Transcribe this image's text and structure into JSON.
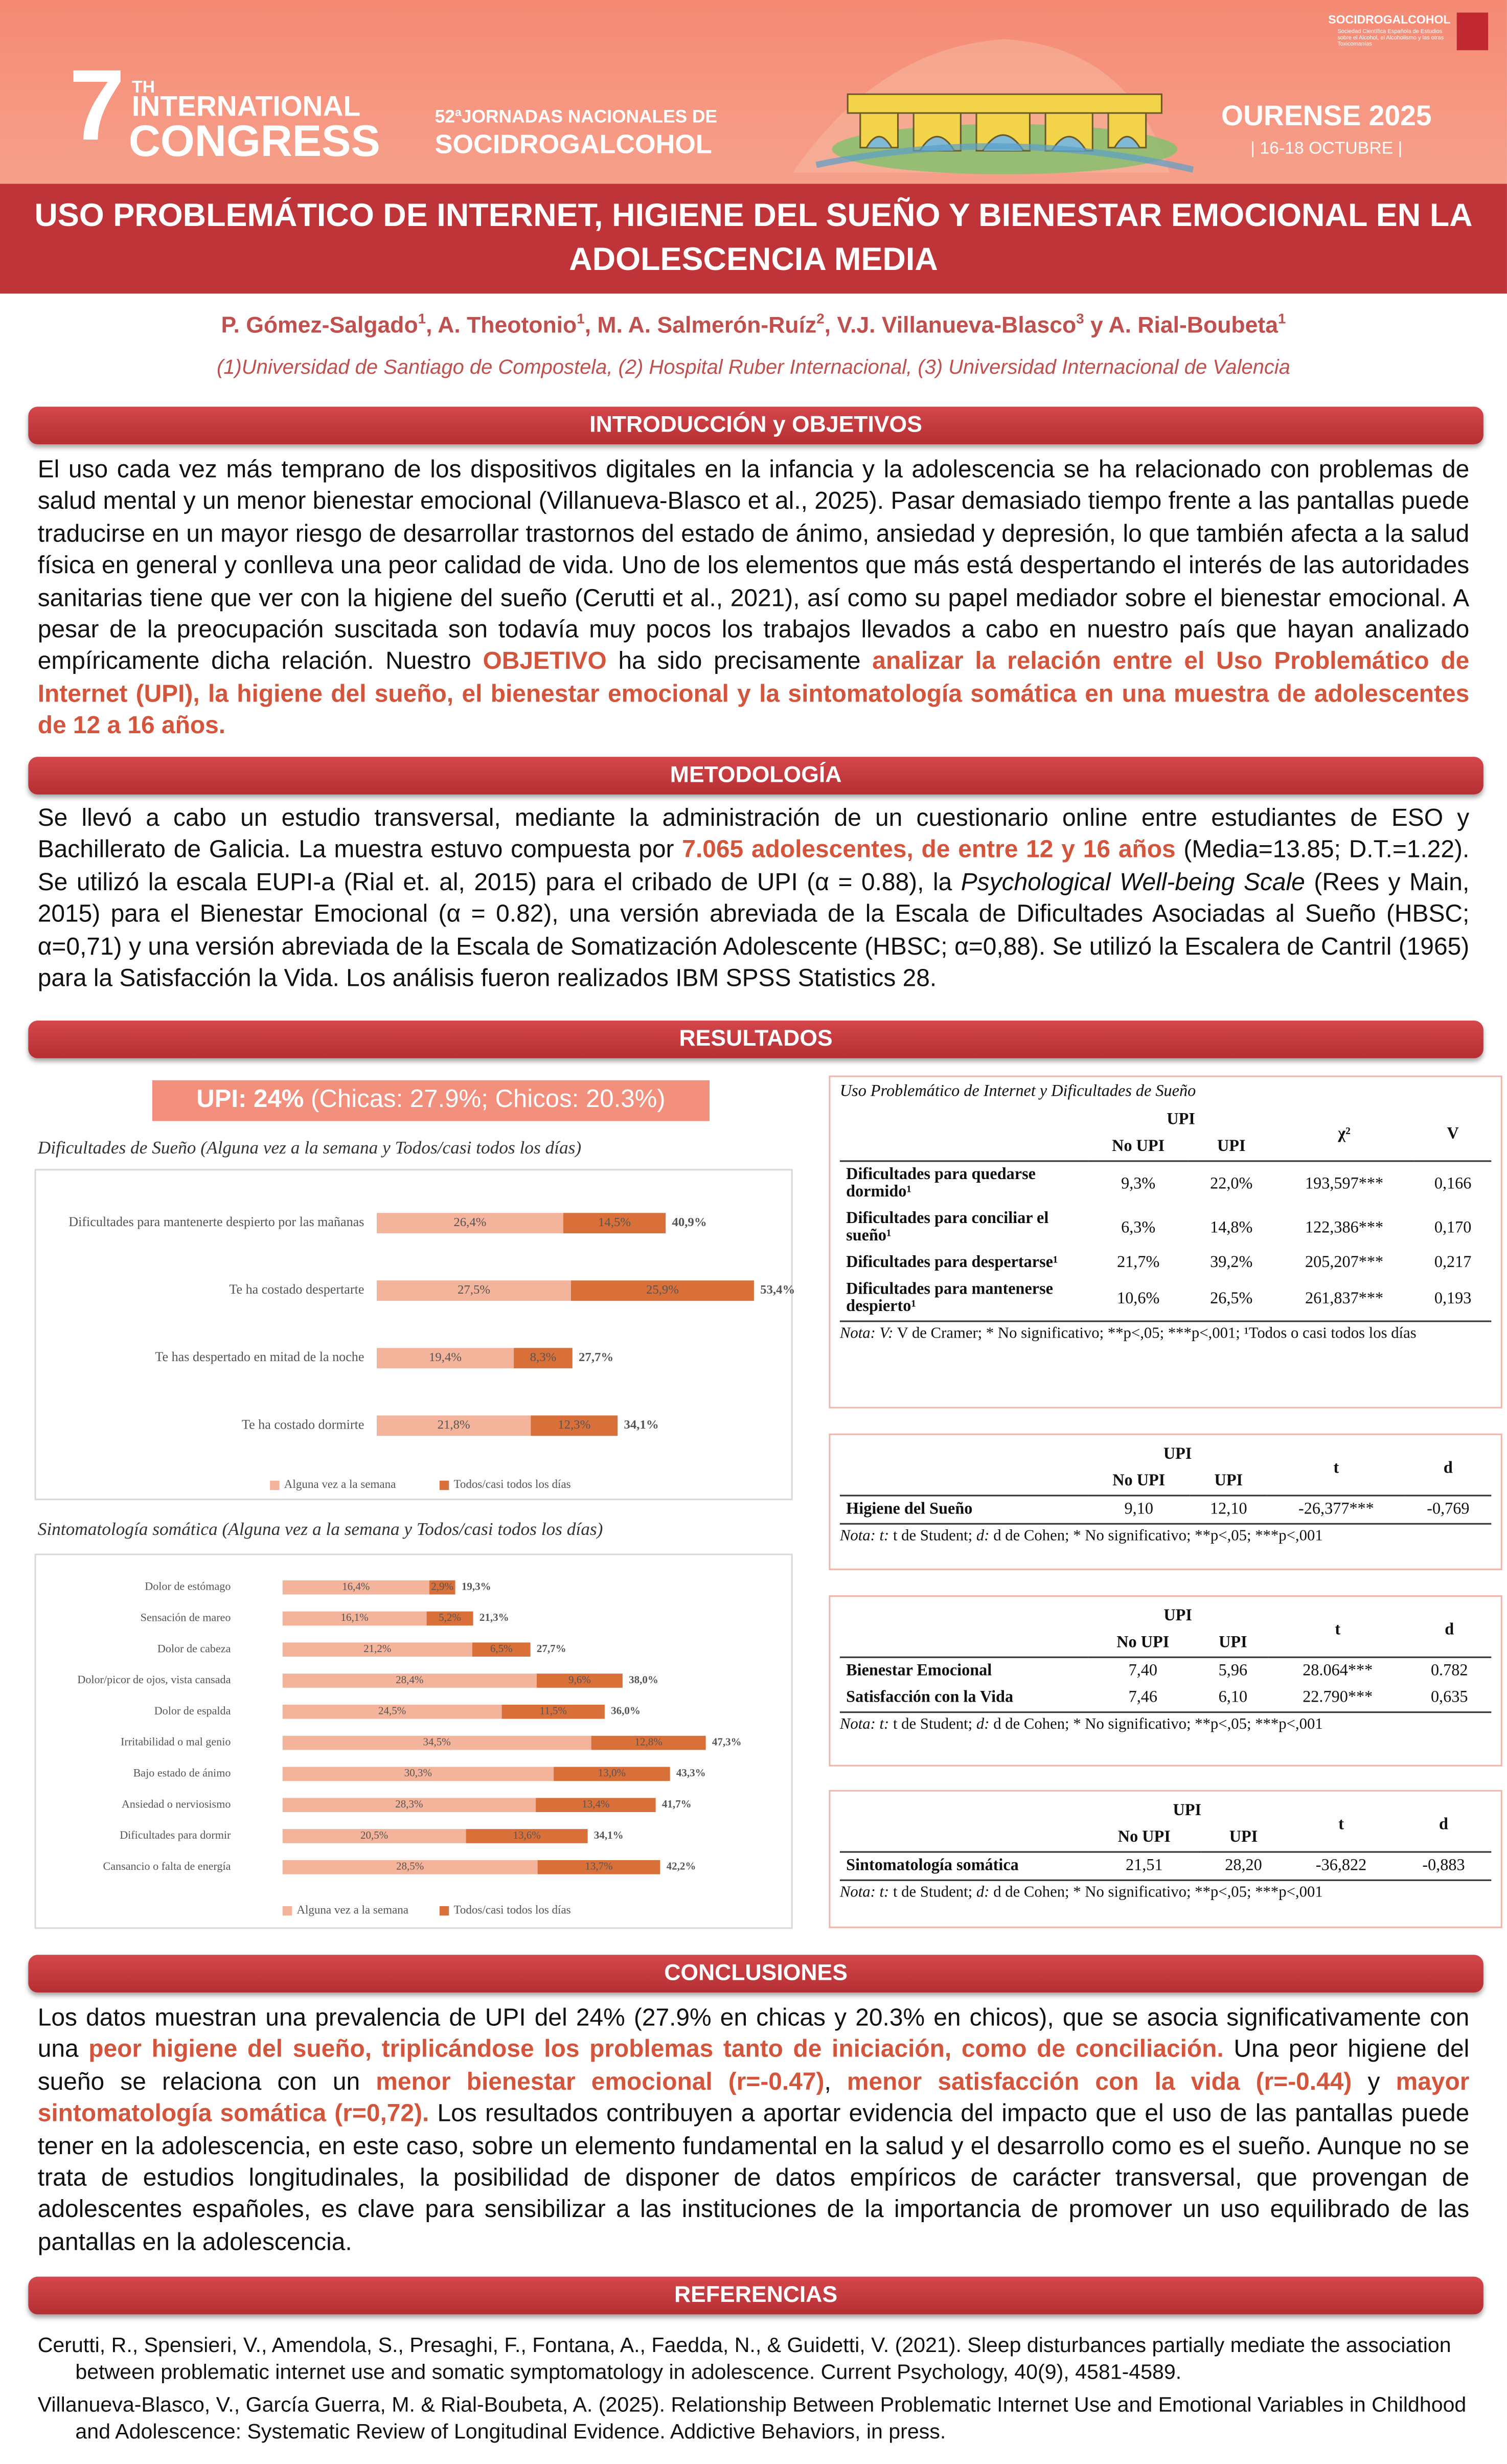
{
  "header": {
    "number": "7",
    "ordinal": "TH",
    "line1": "INTERNATIONAL",
    "line2": "CONGRESS",
    "subtitle1": "52ªJORNADAS NACIONALES DE",
    "subtitle2": "SOCIDROGALCOHOL",
    "city": "OURENSE 2025",
    "dates": "| 16-18 OCTUBRE |",
    "logo": "SOCIDROGALCOHOL",
    "logo_caption": "Sociedad Científica Española de Estudios sobre el Alcohol, el Alcoholismo y las otras Toxicomanías"
  },
  "title": "USO PROBLEMÁTICO DE INTERNET, HIGIENE DEL SUEÑO Y BIENESTAR EMOCIONAL EN LA ADOLESCENCIA MEDIA",
  "authors": [
    {
      "text": "P. Gómez-Salgado"
    },
    {
      "text": "1",
      "style": "sup"
    },
    {
      "text": ", A. Theotonio"
    },
    {
      "text": "1",
      "style": "sup"
    },
    {
      "text": ", M. A. Salmerón-Ruíz"
    },
    {
      "text": "2",
      "style": "sup"
    },
    {
      "text": ", V.J. Villanueva-Blasco"
    },
    {
      "text": "3",
      "style": "sup"
    },
    {
      "text": " y A. Rial-Boubeta"
    },
    {
      "text": "1",
      "style": "sup"
    }
  ],
  "affiliations": "(1)Universidad de Santiago de Compostela, (2) Hospital Ruber Internacional, (3) Universidad Internacional de Valencia",
  "introduction": {
    "heading": "INTRODUCCIÓN y OBJETIVOS",
    "text": [
      {
        "text": "El uso cada vez más temprano de los dispositivos digitales en la infancia y la adolescencia se ha relacionado con problemas de salud mental y un menor bienestar emocional (Villanueva-Blasco et al., 2025). Pasar demasiado tiempo frente a las pantallas puede traducirse en un mayor riesgo de desarrollar trastornos del estado de ánimo, ansiedad y depresión, lo que también afecta a la salud física en general y conlleva una peor calidad de vida. Uno de los elementos que más está despertando el interés de las autoridades sanitarias tiene que ver con la higiene del sueño (Cerutti et al., 2021), así como su papel mediador sobre el bienestar emocional. A pesar de la preocupación suscitada son todavía muy pocos los trabajos llevados a cabo en nuestro país que hayan analizado empíricamente dicha relación. Nuestro "
      },
      {
        "text": "OBJETIVO",
        "style": "highlight"
      },
      {
        "text": " ha sido precisamente "
      },
      {
        "text": "analizar la relación entre el Uso Problemático de Internet (UPI), la higiene del sueño, el bienestar emocional y la sintomatología somática en una muestra de adolescentes de 12 a 16 años.",
        "style": "highlight"
      }
    ]
  },
  "methods": {
    "heading": "METODOLOGÍA",
    "text": [
      {
        "text": "Se llevó a cabo un estudio transversal, mediante la administración de un cuestionario online entre estudiantes de ESO y Bachillerato de Galicia. La muestra estuvo compuesta por "
      },
      {
        "text": "7.065 adolescentes, de entre 12 y 16 años",
        "style": "highlight"
      },
      {
        "text": " (Media=13.85; D.T.=1.22). Se utilizó la escala EUPI-a (Rial et. al, 2015) para el cribado de UPI (α = 0.88), la "
      },
      {
        "text": "Psychological Well-being Scale",
        "style": "italic"
      },
      {
        "text": " (Rees y Main, 2015) para el Bienestar Emocional (α = 0.82), una versión abreviada de la Escala de Dificultades Asociadas al Sueño (HBSC; α=0,71) y una versión abreviada de la Escala de Somatización Adolescente (HBSC; α=0,88). Se utilizó la Escalera de Cantril (1965) para la Satisfacción la Vida. Los análisis fueron realizados IBM SPSS Statistics 28."
      }
    ]
  },
  "results": {
    "heading": "RESULTADOS",
    "upi_box": [
      {
        "text": "UPI: 24%",
        "style": "bold"
      },
      {
        "text": " (Chicas: 27.9%; Chicos: 20.3%)"
      }
    ],
    "tables": [
      {
        "title": "Uso Problemático de Internet y Dificultades de Sueño",
        "group": "UPI",
        "columns": [
          "No UPI",
          "UPI",
          "χ²",
          "V"
        ],
        "rows": [
          [
            "Dificultades para quedarse dormido¹",
            "9,3%",
            "22,0%",
            "193,597***",
            "0,166"
          ],
          [
            "Dificultades para conciliar el sueño¹",
            "6,3%",
            "14,8%",
            "122,386***",
            "0,170"
          ],
          [
            "Dificultades para despertarse¹",
            "21,7%",
            "39,2%",
            "205,207***",
            "0,217"
          ],
          [
            "Dificultades para mantenerse despierto¹",
            "10,6%",
            "26,5%",
            "261,837***",
            "0,193"
          ]
        ],
        "note": [
          {
            "text": "Nota: V:",
            "style": "italic"
          },
          {
            "text": " V de Cramer; * No significativo; **p<,05; ***p<,001; ¹Todos o casi todos los días"
          }
        ]
      },
      {
        "group": "UPI",
        "columns": [
          "No UPI",
          "UPI",
          "t",
          "d"
        ],
        "rows": [
          [
            "Higiene del Sueño",
            "9,10",
            "12,10",
            "-26,377***",
            "-0,769"
          ]
        ],
        "note": [
          {
            "text": "Nota: t:",
            "style": "italic"
          },
          {
            "text": " t de Student; "
          },
          {
            "text": "d:",
            "style": "italic"
          },
          {
            "text": " d de Cohen; * No significativo; **p<,05; ***p<,001"
          }
        ]
      },
      {
        "group": "UPI",
        "columns": [
          "No UPI",
          "UPI",
          "t",
          "d"
        ],
        "rows": [
          [
            "Bienestar Emocional",
            "7,40",
            "5,96",
            "28.064***",
            "0.782"
          ],
          [
            "Satisfacción con la Vida",
            "7,46",
            "6,10",
            "22.790***",
            "0,635"
          ]
        ],
        "note": [
          {
            "text": "Nota: t:",
            "style": "italic"
          },
          {
            "text": " t de Student; "
          },
          {
            "text": "d:",
            "style": "italic"
          },
          {
            "text": " d de Cohen; * No significativo; **p<,05; ***p<,001"
          }
        ]
      },
      {
        "group": "UPI",
        "columns": [
          "No UPI",
          "UPI",
          "t",
          "d"
        ],
        "rows": [
          [
            "Sintomatología somática",
            "21,51",
            "28,20",
            "-36,822",
            "-0,883"
          ]
        ],
        "note": [
          {
            "text": "Nota: t:",
            "style": "italic"
          },
          {
            "text": " t de Student; "
          },
          {
            "text": "d:",
            "style": "italic"
          },
          {
            "text": " d de Cohen; * No significativo; **p<,05; ***p<,001"
          }
        ]
      }
    ]
  },
  "chart_data": [
    {
      "type": "bar",
      "orientation": "horizontal",
      "stacked": true,
      "title": "Dificultades de Sueño (Alguna vez a la semana y Todos/casi todos los días)",
      "categories": [
        "Dificultades para mantenerte despierto por las mañanas",
        "Te ha costado despertarte",
        "Te has despertado en mitad de la noche",
        "Te ha costado dormirte"
      ],
      "series": [
        {
          "name": "Alguna vez a la semana",
          "color": "#f4b39b",
          "values": [
            26.4,
            27.5,
            19.4,
            21.8
          ],
          "value_labels": [
            "26,4%",
            "27,5%",
            "19,4%",
            "21,8%"
          ]
        },
        {
          "name": "Todos/casi todos los días",
          "color": "#d9703a",
          "values": [
            14.5,
            25.9,
            8.3,
            12.3
          ],
          "value_labels": [
            "14,5%",
            "25,9%",
            "8,3%",
            "12,3%"
          ]
        }
      ],
      "totals": [
        40.9,
        53.4,
        27.7,
        34.1
      ],
      "total_labels": [
        "40,9%",
        "53,4%",
        "27,7%",
        "34,1%"
      ]
    },
    {
      "type": "bar",
      "orientation": "horizontal",
      "stacked": true,
      "title": "Sintomatología somática (Alguna vez a la semana y Todos/casi todos los días)",
      "categories": [
        "Dolor de estómago",
        "Sensación de mareo",
        "Dolor de cabeza",
        "Dolor/picor de ojos, vista cansada",
        "Dolor de espalda",
        "Irritabilidad o mal genio",
        "Bajo estado de ánimo",
        "Ansiedad o nerviosismo",
        "Dificultades para dormir",
        "Cansancio o falta de energía"
      ],
      "series": [
        {
          "name": "Alguna vez a la semana",
          "color": "#f4b39b",
          "values": [
            16.4,
            16.1,
            21.2,
            28.4,
            24.5,
            34.5,
            30.3,
            28.3,
            20.5,
            28.5
          ],
          "value_labels": [
            "16,4%",
            "16,1%",
            "21,2%",
            "28,4%",
            "24,5%",
            "34,5%",
            "30,3%",
            "28,3%",
            "20,5%",
            "28,5%"
          ]
        },
        {
          "name": "Todos/casi todos los días",
          "color": "#d9703a",
          "values": [
            2.9,
            5.2,
            6.5,
            9.6,
            11.5,
            12.8,
            13.0,
            13.4,
            13.6,
            13.7
          ],
          "value_labels": [
            "2,9%",
            "5,2%",
            "6,5%",
            "9,6%",
            "11,5%",
            "12,8%",
            "13,0%",
            "13,4%",
            "13,6%",
            "13,7%"
          ]
        }
      ],
      "totals": [
        19.3,
        21.3,
        27.7,
        38.0,
        36.0,
        47.3,
        43.3,
        41.7,
        34.1,
        42.2
      ],
      "total_labels": [
        "19,3%",
        "21,3%",
        "27,7%",
        "38,0%",
        "36,0%",
        "47,3%",
        "43,3%",
        "41,7%",
        "34,1%",
        "42,2%"
      ]
    }
  ],
  "conclusions": {
    "heading": "CONCLUSIONES",
    "text": [
      {
        "text": "Los datos muestran una prevalencia de UPI del 24% (27.9% en chicas y 20.3% en chicos), que se asocia significativamente con una "
      },
      {
        "text": "peor higiene del sueño, triplicándose los problemas tanto de iniciación, como de conciliación.",
        "style": "highlight"
      },
      {
        "text": " Una peor higiene del sueño se relaciona con un "
      },
      {
        "text": "menor bienestar emocional (r=-0.47)",
        "style": "highlight"
      },
      {
        "text": ", "
      },
      {
        "text": "menor satisfacción con la vida (r=-0.44)",
        "style": "highlight"
      },
      {
        "text": " y "
      },
      {
        "text": "mayor sintomatología somática (r=0,72).",
        "style": "highlight"
      },
      {
        "text": " Los resultados contribuyen a aportar evidencia del impacto que el uso de las pantallas puede tener en la adolescencia, en este caso, sobre un elemento fundamental en la salud y el desarrollo como es el sueño. Aunque no se trata de estudios longitudinales, la posibilidad de disponer de datos empíricos de carácter transversal, que provengan de adolescentes españoles, es clave para sensibilizar a las instituciones de la importancia de promover un uso equilibrado de las pantallas en la adolescencia."
      }
    ]
  },
  "references": {
    "heading": "REFERENCIAS",
    "items": [
      "Cerutti, R., Spensieri, V., Amendola, S., Presaghi, F., Fontana, A., Faedda, N., & Guidetti, V. (2021). Sleep disturbances partially mediate the association between problematic internet use and somatic symptomatology in adolescence. Current Psychology, 40(9), 4581-4589.",
      "Villanueva-Blasco, V., García Guerra, M. & Rial-Boubeta, A. (2025). Relationship Between Problematic Internet Use and Emotional Variables in Childhood and Adolescence: Systematic Review of Longitudinal Evidence. Addictive Behaviors, in press."
    ]
  }
}
